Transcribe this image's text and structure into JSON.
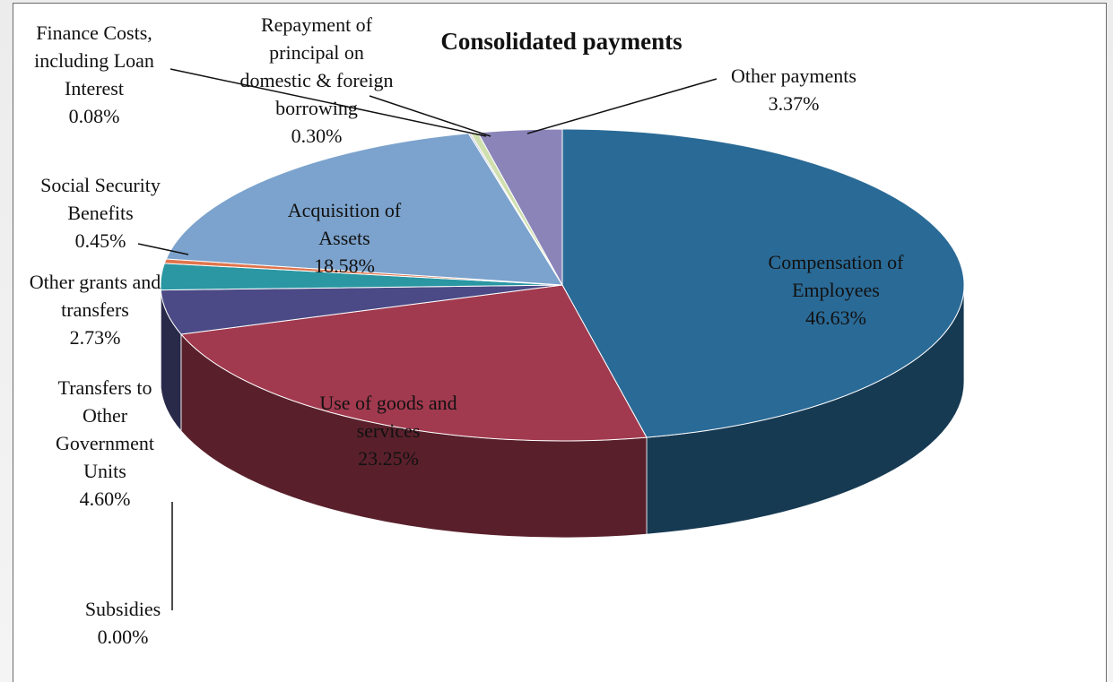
{
  "chart_data": {
    "type": "pie",
    "title": "Consolidated payments",
    "slices": [
      {
        "label": "Compensation of Employees",
        "value": 46.63,
        "text": "46.63%",
        "color": "#2a6a96"
      },
      {
        "label": "Use of goods and services",
        "value": 23.25,
        "text": "23.25%",
        "color": "#a23a4f"
      },
      {
        "label": "Subsidies",
        "value": 0.0,
        "text": "0.00%",
        "color": "#6e9a3c"
      },
      {
        "label": "Transfers to Other Government Units",
        "value": 4.6,
        "text": "4.60%",
        "color": "#4b4a86"
      },
      {
        "label": "Other grants and transfers",
        "value": 2.73,
        "text": "2.73%",
        "color": "#2a97a3"
      },
      {
        "label": "Social Security Benefits",
        "value": 0.45,
        "text": "0.45%",
        "color": "#e0744c"
      },
      {
        "label": "Acquisition of Assets",
        "value": 18.58,
        "text": "18.58%",
        "color": "#7ca3cd"
      },
      {
        "label": "Finance Costs, including Loan Interest",
        "value": 0.08,
        "text": "0.08%",
        "color": "#b9c3d8"
      },
      {
        "label": "Repayment of principal on domestic & foreign borrowing",
        "value": 0.3,
        "text": "0.30%",
        "color": "#cfdfae"
      },
      {
        "label": "Other payments",
        "value": 3.37,
        "text": "3.37%",
        "color": "#8b84b9"
      }
    ],
    "legend": "none"
  }
}
